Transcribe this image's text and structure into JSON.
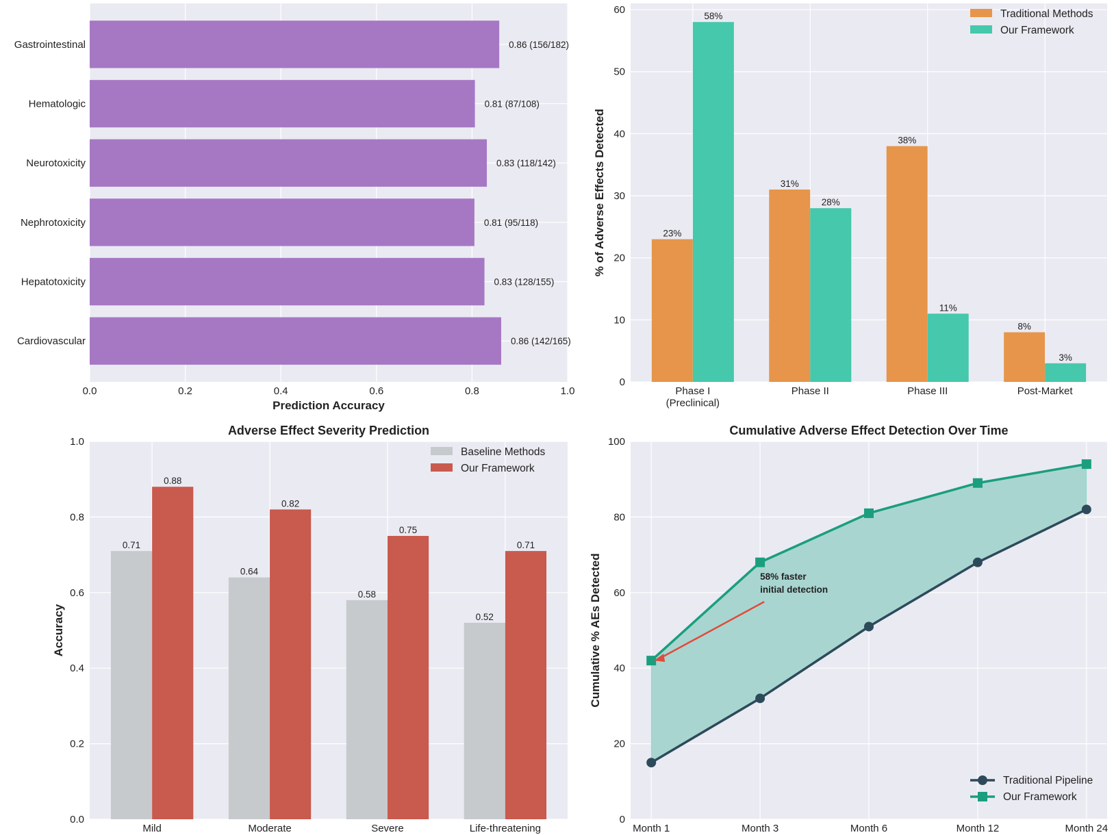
{
  "colors": {
    "background": "#eaeaf2",
    "grid": "#ffffff",
    "purple": "#a678c4",
    "traditional_orange": "#e6954a",
    "framework_teal": "#45c8ab",
    "baseline_gray": "#c6cacd",
    "framework_red": "#c95a4e",
    "pipeline_dark": "#2c4a5a",
    "framework_green": "#1a9e7e",
    "area_fill": "#a9d5d0",
    "annotation_red": "#e04b3a"
  },
  "chart_data": [
    {
      "type": "bar",
      "orientation": "horizontal",
      "title": "",
      "xlabel": "Prediction Accuracy",
      "ylabel": "",
      "xlim": [
        0,
        1.0
      ],
      "xticks": [
        "0.0",
        "0.2",
        "0.4",
        "0.6",
        "0.8",
        "1.0"
      ],
      "categories": [
        "Gastrointestinal",
        "Hematologic",
        "Neurotoxicity",
        "Nephrotoxicity",
        "Hepatotoxicity",
        "Cardiovascular"
      ],
      "values": [
        0.857,
        0.806,
        0.831,
        0.805,
        0.826,
        0.861
      ],
      "data_labels": [
        "0.86 (156/182)",
        "0.81 (87/108)",
        "0.83 (118/142)",
        "0.81 (95/118)",
        "0.83 (128/155)",
        "0.86 (142/165)"
      ],
      "grid": true
    },
    {
      "type": "bar",
      "title": "",
      "xlabel": "",
      "ylabel": "% of Adverse Effects Detected",
      "ylim": [
        0,
        61
      ],
      "yticks": [
        "0",
        "10",
        "20",
        "30",
        "40",
        "50",
        "60"
      ],
      "categories": [
        "Phase I\n(Preclinical)",
        "Phase II",
        "Phase III",
        "Post-Market"
      ],
      "series": [
        {
          "name": "Traditional Methods",
          "values": [
            23,
            31,
            38,
            8
          ],
          "data_labels": [
            "23%",
            "31%",
            "38%",
            "8%"
          ]
        },
        {
          "name": "Our Framework",
          "values": [
            58,
            28,
            11,
            3
          ],
          "data_labels": [
            "58%",
            "28%",
            "11%",
            "3%"
          ]
        }
      ],
      "legend": "top-right",
      "grid": true
    },
    {
      "type": "bar",
      "title": "Adverse Effect Severity Prediction",
      "xlabel": "",
      "ylabel": "Accuracy",
      "ylim": [
        0,
        1.0
      ],
      "yticks": [
        "0.0",
        "0.2",
        "0.4",
        "0.6",
        "0.8",
        "1.0"
      ],
      "categories": [
        "Mild",
        "Moderate",
        "Severe",
        "Life-threatening"
      ],
      "series": [
        {
          "name": "Baseline Methods",
          "values": [
            0.71,
            0.64,
            0.58,
            0.52
          ],
          "data_labels": [
            "0.71",
            "0.64",
            "0.58",
            "0.52"
          ]
        },
        {
          "name": "Our Framework",
          "values": [
            0.88,
            0.82,
            0.75,
            0.71
          ],
          "data_labels": [
            "0.88",
            "0.82",
            "0.75",
            "0.71"
          ]
        }
      ],
      "legend": "top-right",
      "grid": true
    },
    {
      "type": "line",
      "title": "Cumulative Adverse Effect Detection Over Time",
      "xlabel": "",
      "ylabel": "Cumulative % AEs Detected",
      "ylim": [
        0,
        100
      ],
      "yticks": [
        "0",
        "20",
        "40",
        "60",
        "80",
        "100"
      ],
      "categories": [
        "Month 1",
        "Month 3",
        "Month 6",
        "Month 12",
        "Month 24"
      ],
      "series": [
        {
          "name": "Traditional Pipeline",
          "values": [
            15,
            32,
            51,
            68,
            82
          ],
          "marker": "circle"
        },
        {
          "name": "Our Framework",
          "values": [
            42,
            68,
            81,
            89,
            94
          ],
          "marker": "square"
        }
      ],
      "fill_between": true,
      "annotation": {
        "text": [
          "58% faster",
          "initial detection"
        ],
        "points_to": {
          "x": "Month 1",
          "y": 42
        }
      },
      "legend": "bottom-right",
      "grid": true
    }
  ]
}
